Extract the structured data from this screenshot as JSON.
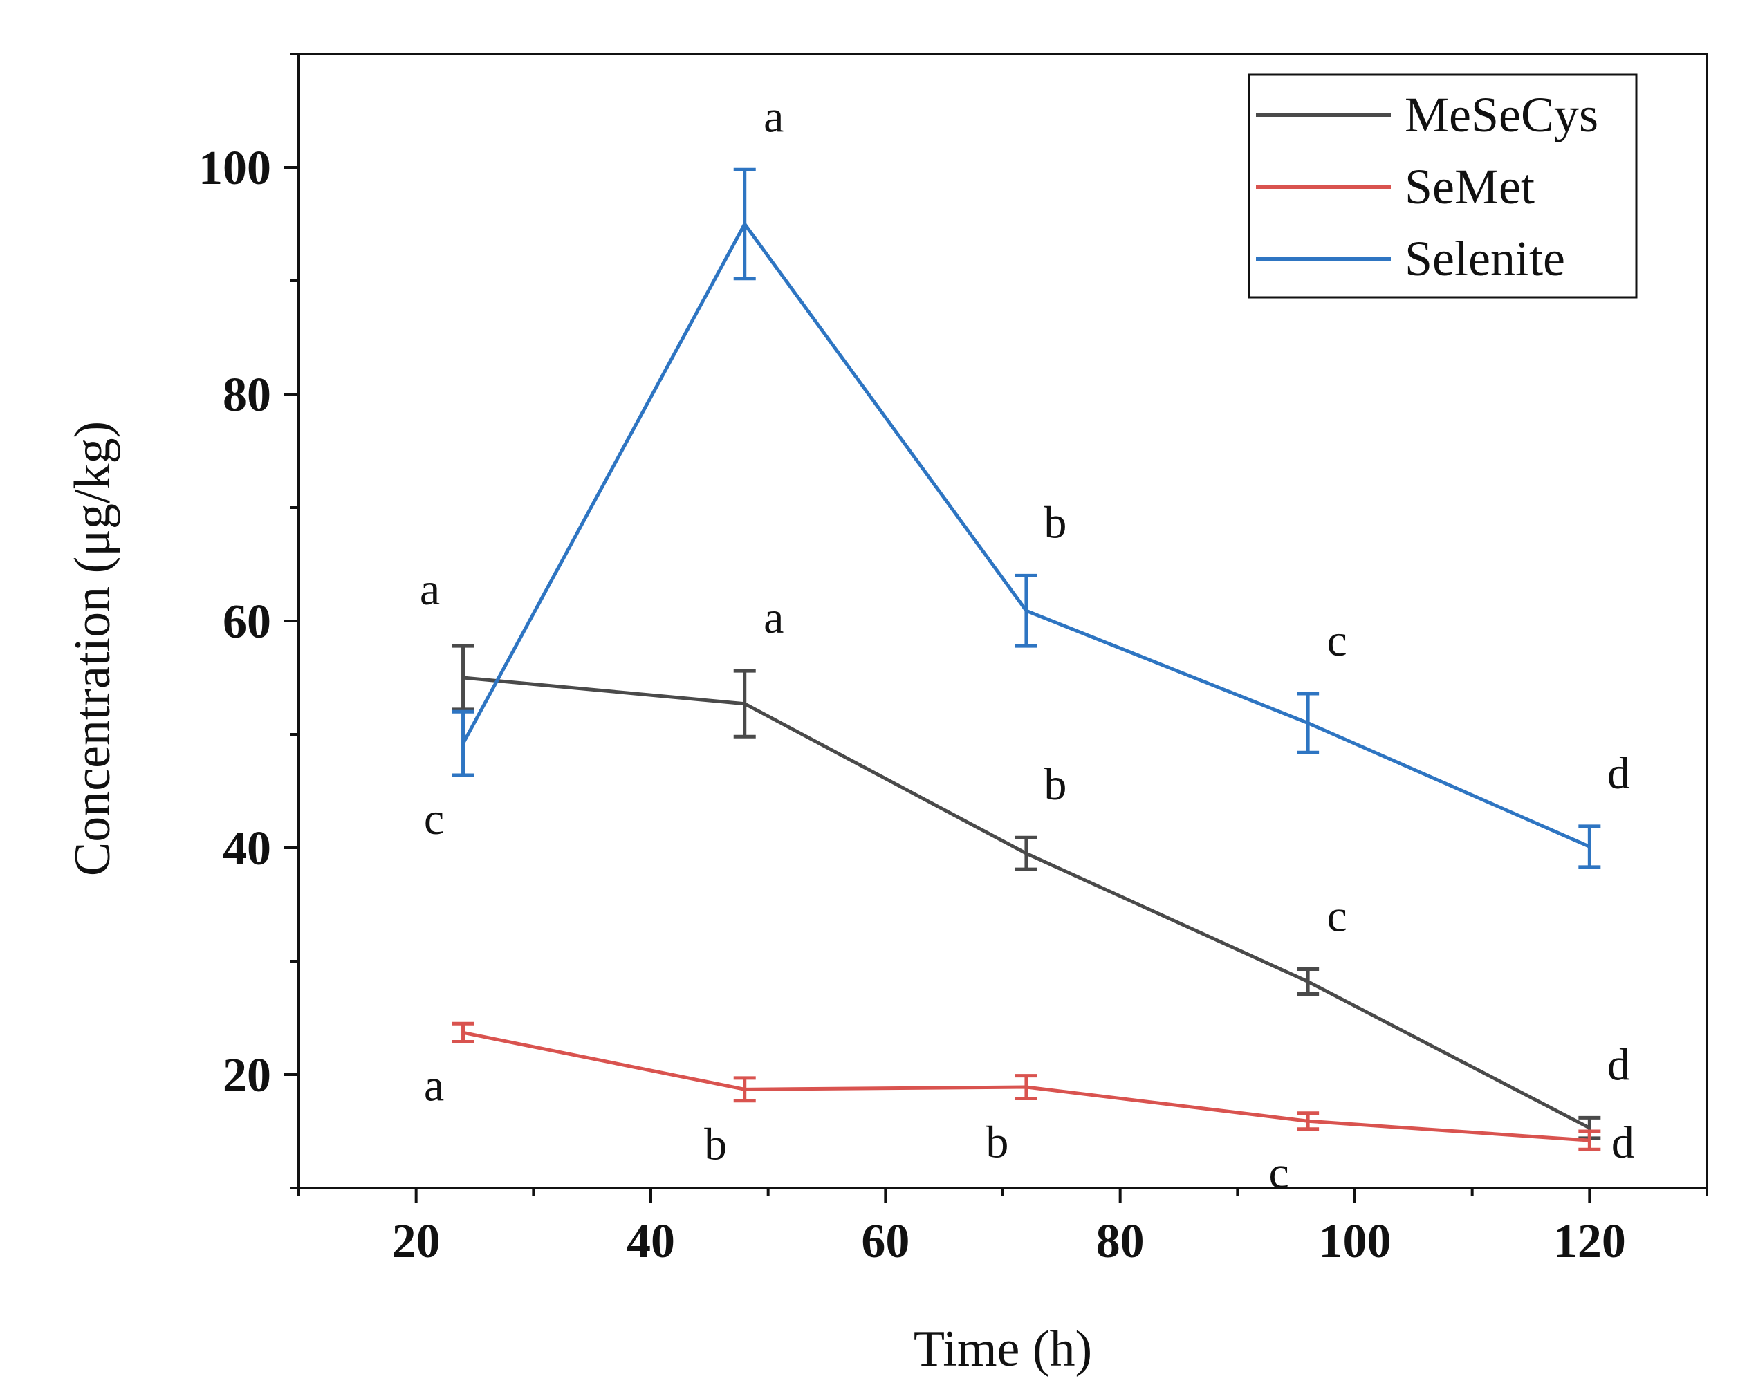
{
  "chart_data": {
    "type": "line",
    "title": "",
    "xlabel": "Time (h)",
    "ylabel": "Concentration (μg/kg)",
    "xlim": [
      10,
      130
    ],
    "ylim": [
      10,
      110
    ],
    "x_ticks": [
      20,
      40,
      60,
      80,
      100,
      120
    ],
    "y_ticks": [
      20,
      40,
      60,
      80,
      100
    ],
    "x": [
      24,
      48,
      72,
      96,
      120
    ],
    "legend_position": "top-right",
    "series": [
      {
        "name": "MeSeCys",
        "color": "#4a4a4a",
        "values": [
          55.0,
          52.7,
          39.5,
          28.2,
          15.3
        ],
        "errors": [
          2.8,
          2.9,
          1.4,
          1.1,
          0.9
        ],
        "letters": [
          "a",
          "a",
          "b",
          "c",
          "d"
        ],
        "letter_positions": [
          "above-left",
          "above-right",
          "above-right",
          "above-right",
          "above-right"
        ]
      },
      {
        "name": "SeMet",
        "color": "#d9534f",
        "values": [
          23.7,
          18.7,
          18.9,
          15.9,
          14.2
        ],
        "errors": [
          0.8,
          1.0,
          1.0,
          0.7,
          0.8
        ],
        "letters": [
          "a",
          "b",
          "b",
          "c",
          "d"
        ],
        "letter_positions": [
          "below-left",
          "below-left",
          "below-left",
          "below-left",
          "right"
        ]
      },
      {
        "name": "Selenite",
        "color": "#2e75c2",
        "values": [
          49.2,
          95.0,
          60.9,
          51.0,
          40.1
        ],
        "errors": [
          2.8,
          4.8,
          3.1,
          2.6,
          1.8
        ],
        "letters": [
          "c",
          "a",
          "b",
          "c",
          "d"
        ],
        "letter_positions": [
          "below-left",
          "above-right",
          "above-right",
          "above-right",
          "above-right"
        ]
      }
    ]
  }
}
